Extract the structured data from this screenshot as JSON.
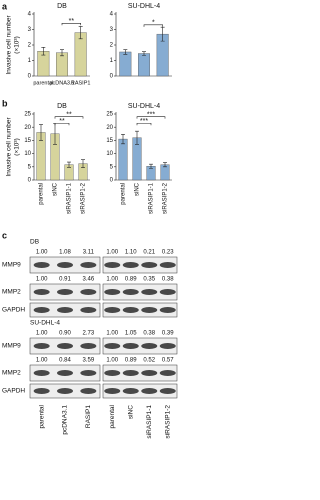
{
  "panel_labels": [
    "a",
    "b",
    "c"
  ],
  "chart_data": [
    {
      "type": "bar",
      "title": "DB",
      "ylabel": [
        "Invasive cell number",
        "(×10³)"
      ],
      "categories": [
        "parental",
        "pcDNA3.1",
        "RASIP1"
      ],
      "values": [
        1.6,
        1.5,
        2.8
      ],
      "errors": [
        0.25,
        0.2,
        0.4
      ],
      "color": "#d6d49c",
      "ylim": [
        0,
        4
      ],
      "yticks": [
        0,
        1,
        2,
        3,
        4
      ],
      "annotations": [
        "**"
      ]
    },
    {
      "type": "bar",
      "title": "SU-DHL-4",
      "categories": [
        null,
        null,
        null
      ],
      "values": [
        1.55,
        1.45,
        2.7
      ],
      "errors": [
        0.15,
        0.12,
        0.45
      ],
      "color": "#86acd2",
      "ylim": [
        0,
        4
      ],
      "yticks": [
        0,
        1,
        2,
        3,
        4
      ],
      "annotations": [
        "*"
      ]
    },
    {
      "type": "bar",
      "title": "DB",
      "ylabel": [
        "Invasive cell number",
        "(×10³)"
      ],
      "categories": [
        "parental",
        "siNC",
        "siRASIP1-1",
        "siRASIP1-2"
      ],
      "values": [
        18,
        17.5,
        5.8,
        6.2
      ],
      "errors": [
        3,
        4,
        1,
        1.5
      ],
      "color": "#d6d49c",
      "ylim": [
        0,
        25
      ],
      "yticks": [
        0,
        5,
        10,
        15,
        20,
        25
      ],
      "annotations": [
        "**",
        "**"
      ]
    },
    {
      "type": "bar",
      "title": "SU-DHL-4",
      "categories": [
        "parental",
        "siNC",
        "siRASIP1-1",
        "siRASIP1-2"
      ],
      "values": [
        15.5,
        16,
        5.2,
        5.8
      ],
      "errors": [
        1.8,
        2.5,
        0.8,
        0.8
      ],
      "color": "#86acd2",
      "ylim": [
        0,
        25
      ],
      "yticks": [
        0,
        5,
        10,
        15,
        20,
        25
      ],
      "annotations": [
        "***",
        "***"
      ]
    }
  ],
  "blot": {
    "lanes": [
      "parental",
      "pcDNA3.1",
      "RASIP1",
      "parental",
      "siNC",
      "siRASIP1-1",
      "siRASIP1-2"
    ],
    "cell_lines": [
      {
        "name": "DB",
        "rows": [
          {
            "protein": "MMP9",
            "values": [
              "1.00",
              "1.08",
              "3.11",
              "1.00",
              "1.10",
              "0.21",
              "0.23"
            ]
          },
          {
            "protein": "MMP2",
            "values": [
              "1.00",
              "0.91",
              "3.46",
              "1.00",
              "0.89",
              "0.35",
              "0.38"
            ]
          },
          {
            "protein": "GAPDH"
          }
        ]
      },
      {
        "name": "SU-DHL-4",
        "rows": [
          {
            "protein": "MMP9",
            "values": [
              "1.00",
              "0.90",
              "2.73",
              "1.00",
              "1.05",
              "0.38",
              "0.39"
            ]
          },
          {
            "protein": "MMP2",
            "values": [
              "1.00",
              "0.84",
              "3.59",
              "1.00",
              "0.89",
              "0.52",
              "0.57"
            ]
          },
          {
            "protein": "GAPDH"
          }
        ]
      }
    ]
  }
}
